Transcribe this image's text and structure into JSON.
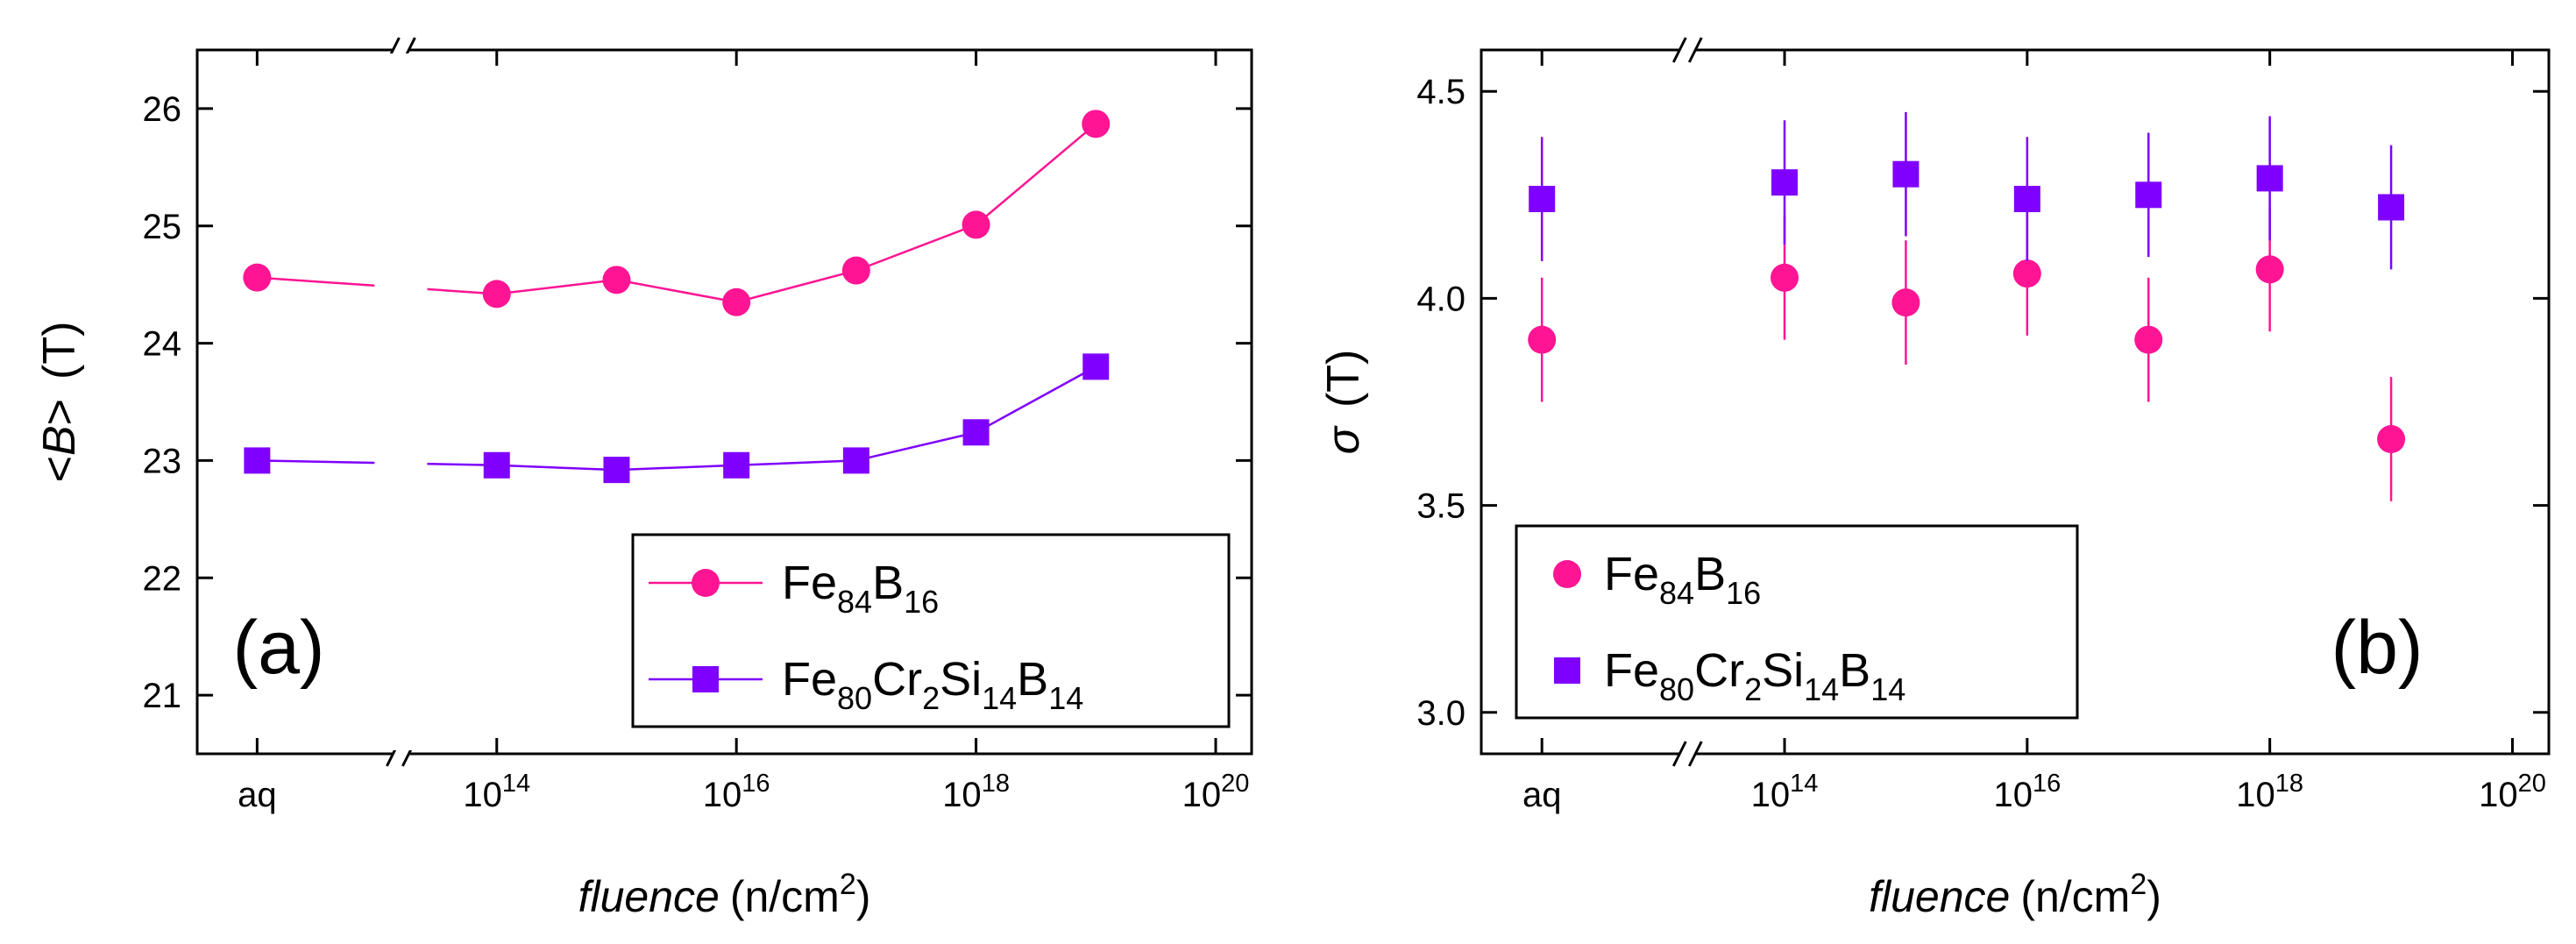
{
  "colors": {
    "fe84": "#ff1493",
    "fe80": "#7f00ff",
    "axis": "#000000"
  },
  "chart_data": [
    {
      "panel": "a",
      "type": "line",
      "panel_label": "(a)",
      "ylabel_prefix": "<",
      "ylabel_var": "B",
      "ylabel_suffix": ">",
      "ylabel_unit": "(T)",
      "xlabel_var": "fluence",
      "xlabel_unit": "(n/cm",
      "xlabel_exp": "2",
      "xlabel_close": ")",
      "ylim": [
        20.5,
        26.5
      ],
      "yticks": [
        {
          "v": 21,
          "label": "21"
        },
        {
          "v": 22,
          "label": "22"
        },
        {
          "v": 23,
          "label": "23"
        },
        {
          "v": 24,
          "label": "24"
        },
        {
          "v": 25,
          "label": "25"
        },
        {
          "v": 26,
          "label": "26"
        }
      ],
      "xlim": [
        11.5,
        20.3
      ],
      "xticks": [
        {
          "v": 12,
          "label": "aq"
        },
        {
          "v": 14,
          "base": "10",
          "exp": "14"
        },
        {
          "v": 16,
          "base": "10",
          "exp": "16"
        },
        {
          "v": 18,
          "base": "10",
          "exp": "18"
        },
        {
          "v": 20,
          "base": "10",
          "exp": "20"
        }
      ],
      "axis_break_at": 13.2,
      "legend": {
        "position": "bottom-right",
        "style": "line-marker"
      },
      "series": [
        {
          "name_main": "Fe",
          "name_sub1": "84",
          "name_mid": "B",
          "name_sub2": "16",
          "name_mid2": "",
          "name_sub3": "",
          "name_mid3": "",
          "name_sub4": "",
          "marker": "circle",
          "color_key": "fe84",
          "x": [
            12,
            14,
            15,
            16,
            17,
            18,
            19
          ],
          "y": [
            24.56,
            24.42,
            24.54,
            24.35,
            24.62,
            25.01,
            25.87
          ],
          "err": [
            0.09,
            0.09,
            0.09,
            0.09,
            0.09,
            0.09,
            0.09
          ]
        },
        {
          "name_main": "Fe",
          "name_sub1": "80",
          "name_mid": "Cr",
          "name_sub2": "2",
          "name_mid2": "Si",
          "name_sub3": "14",
          "name_mid3": "B",
          "name_sub4": "14",
          "marker": "square",
          "color_key": "fe80",
          "x": [
            12,
            14,
            15,
            16,
            17,
            18,
            19
          ],
          "y": [
            23.0,
            22.96,
            22.92,
            22.96,
            23.0,
            23.24,
            23.8
          ],
          "err": [
            0.09,
            0.09,
            0.09,
            0.09,
            0.09,
            0.09,
            0.09
          ]
        }
      ]
    },
    {
      "panel": "b",
      "type": "scatter",
      "panel_label": "(b)",
      "ylabel_var": "σ",
      "ylabel_unit": "(T)",
      "xlabel_var": "fluence",
      "xlabel_unit": "(n/cm",
      "xlabel_exp": "2",
      "xlabel_close": ")",
      "ylim": [
        2.9,
        4.6
      ],
      "yticks": [
        {
          "v": 3.0,
          "label": "3.0"
        },
        {
          "v": 3.5,
          "label": "3.5"
        },
        {
          "v": 4.0,
          "label": "4.0"
        },
        {
          "v": 4.5,
          "label": "4.5"
        }
      ],
      "xlim": [
        11.5,
        20.3
      ],
      "xticks": [
        {
          "v": 12,
          "label": "aq"
        },
        {
          "v": 14,
          "base": "10",
          "exp": "14"
        },
        {
          "v": 16,
          "base": "10",
          "exp": "16"
        },
        {
          "v": 18,
          "base": "10",
          "exp": "18"
        },
        {
          "v": 20,
          "base": "10",
          "exp": "20"
        }
      ],
      "axis_break_at": 13.2,
      "legend": {
        "position": "bottom-left",
        "style": "marker-only"
      },
      "series": [
        {
          "name_main": "Fe",
          "name_sub1": "84",
          "name_mid": "B",
          "name_sub2": "16",
          "name_mid2": "",
          "name_sub3": "",
          "name_mid3": "",
          "name_sub4": "",
          "marker": "circle",
          "color_key": "fe84",
          "x": [
            12,
            14,
            15,
            16,
            17,
            18,
            19
          ],
          "y": [
            3.9,
            4.05,
            3.99,
            4.06,
            3.9,
            4.07,
            3.66
          ],
          "err": [
            0.15,
            0.15,
            0.15,
            0.15,
            0.15,
            0.15,
            0.15
          ]
        },
        {
          "name_main": "Fe",
          "name_sub1": "80",
          "name_mid": "Cr",
          "name_sub2": "2",
          "name_mid2": "Si",
          "name_sub3": "14",
          "name_mid3": "B",
          "name_sub4": "14",
          "marker": "square",
          "color_key": "fe80",
          "x": [
            12,
            14,
            15,
            16,
            17,
            18,
            19
          ],
          "y": [
            4.24,
            4.28,
            4.3,
            4.24,
            4.25,
            4.29,
            4.22
          ],
          "err": [
            0.15,
            0.15,
            0.15,
            0.15,
            0.15,
            0.15,
            0.15
          ]
        }
      ]
    }
  ]
}
